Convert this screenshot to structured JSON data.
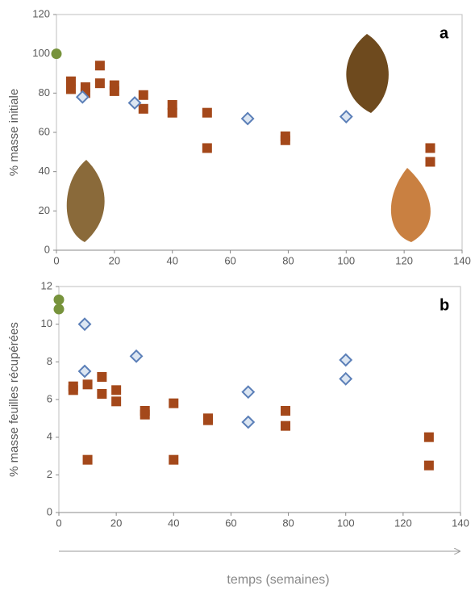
{
  "chart_data": [
    {
      "type": "scatter",
      "panel_label": "a",
      "ylabel": "% masse initiale",
      "xlim": [
        0,
        140
      ],
      "xticks": [
        0,
        20,
        40,
        60,
        80,
        100,
        120,
        140
      ],
      "ylim": [
        0,
        120
      ],
      "yticks": [
        0,
        20,
        40,
        60,
        80,
        100,
        120
      ],
      "series": [
        {
          "marker": "circle",
          "color": "#77933c",
          "x": [
            0
          ],
          "values": [
            100
          ]
        },
        {
          "marker": "square",
          "color": "#a4481a",
          "x": [
            5,
            5,
            10,
            10,
            15,
            15,
            20,
            20,
            30,
            30,
            40,
            40,
            52,
            52,
            79,
            79,
            129,
            129
          ],
          "values": [
            86,
            82,
            83,
            80,
            94,
            85,
            84,
            81,
            79,
            72,
            74,
            70,
            70,
            52,
            58,
            56,
            52,
            45
          ]
        },
        {
          "marker": "diamond",
          "color": "#5b7fb8",
          "x": [
            9,
            27,
            66,
            100
          ],
          "values": [
            78,
            75,
            67,
            68
          ]
        }
      ]
    },
    {
      "type": "scatter",
      "panel_label": "b",
      "ylabel": "% masse feuilles récupérées",
      "xlabel": "temps (semaines)",
      "xlim": [
        0,
        140
      ],
      "xticks": [
        0,
        20,
        40,
        60,
        80,
        100,
        120,
        140
      ],
      "ylim": [
        0,
        12
      ],
      "yticks": [
        0,
        2,
        4,
        6,
        8,
        10,
        12
      ],
      "series": [
        {
          "marker": "circle",
          "color": "#77933c",
          "x": [
            0,
            0
          ],
          "values": [
            11.3,
            10.8
          ]
        },
        {
          "marker": "diamond",
          "color": "#5b7fb8",
          "x": [
            9,
            9,
            27,
            66,
            66,
            100,
            100
          ],
          "values": [
            10,
            7.5,
            8.3,
            6.4,
            4.8,
            8.1,
            7.1
          ]
        },
        {
          "marker": "square",
          "color": "#a4481a",
          "x": [
            5,
            5,
            10,
            10,
            15,
            15,
            20,
            20,
            30,
            30,
            40,
            40,
            52,
            52,
            79,
            79,
            129,
            129
          ],
          "values": [
            6.7,
            6.5,
            6.8,
            2.8,
            7.2,
            6.3,
            6.5,
            5.9,
            5.4,
            5.2,
            5.8,
            2.8,
            5.0,
            4.9,
            5.4,
            4.6,
            4.0,
            2.5
          ]
        }
      ]
    }
  ]
}
